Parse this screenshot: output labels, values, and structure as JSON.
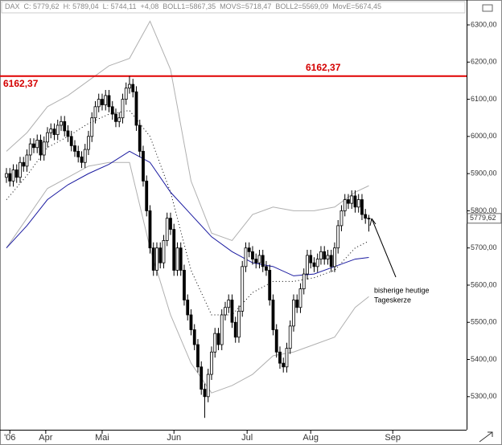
{
  "chart_data": {
    "type": "candlestick",
    "header": [
      "DAX",
      "C: 5779,62",
      "H: 5789,04",
      "L: 5744,11",
      "+4,08",
      "BOLL1=5867,35",
      "MOVS=5718,47",
      "BOLL2=5569,09",
      "MovE=5674,45"
    ],
    "ylim": [
      5211,
      6367
    ],
    "yticks": [
      {
        "value": 5300,
        "label": "5300,00"
      },
      {
        "value": 5400,
        "label": "5400,00"
      },
      {
        "value": 5500,
        "label": "5500,00"
      },
      {
        "value": 5600,
        "label": "5600,00"
      },
      {
        "value": 5700,
        "label": "5700,00"
      },
      {
        "value": 5800,
        "label": "5800,00"
      },
      {
        "value": 5900,
        "label": "5900,00"
      },
      {
        "value": 6000,
        "label": "6000,00"
      },
      {
        "value": 6100,
        "label": "6100,00"
      },
      {
        "value": 6200,
        "label": "6200,00"
      },
      {
        "value": 6300,
        "label": "6300,00"
      }
    ],
    "xlim": [
      -1.88,
      134.6
    ],
    "xticks": [
      {
        "value": 1,
        "label": "'06"
      },
      {
        "value": 11.5,
        "label": "Apr"
      },
      {
        "value": 28,
        "label": "Mai"
      },
      {
        "value": 49,
        "label": "Jun"
      },
      {
        "value": 70.4,
        "label": "Jul"
      },
      {
        "value": 89,
        "label": "Aug"
      },
      {
        "value": 113,
        "label": "Sep"
      }
    ],
    "up_color": "#ffffff",
    "down_color": "#000000",
    "open": [
      5890,
      5900,
      5880,
      5910,
      5890,
      5930,
      5920,
      5950,
      5980,
      5970,
      5990,
      5950,
      5985,
      6010,
      6020,
      6005,
      6030,
      6040,
      6015,
      6000,
      5975,
      5960,
      5945,
      5930,
      5965,
      6000,
      6050,
      6080,
      6100,
      6085,
      6110,
      6080,
      6060,
      6040,
      6050,
      6100,
      6130,
      6140,
      6120,
      6030,
      5960,
      5880,
      5800,
      5700,
      5640,
      5700,
      5660,
      5720,
      5780,
      5750,
      5640,
      5700,
      5640,
      5560,
      5520,
      5480,
      5440,
      5380,
      5320,
      5300,
      5360,
      5420,
      5470,
      5440,
      5520,
      5540,
      5560,
      5500,
      5460,
      5530,
      5650,
      5700,
      5690,
      5670,
      5660,
      5680,
      5650,
      5640,
      5560,
      5480,
      5420,
      5390,
      5380,
      5430,
      5490,
      5560,
      5540,
      5590,
      5630,
      5680,
      5660,
      5650,
      5670,
      5690,
      5670,
      5680,
      5650,
      5700,
      5760,
      5800,
      5830,
      5820,
      5840,
      5810,
      5830,
      5790,
      5780
    ],
    "high": [
      5915,
      5915,
      5925,
      5925,
      5945,
      5945,
      5965,
      5995,
      5995,
      6005,
      6005,
      6000,
      6025,
      6035,
      6035,
      6045,
      6055,
      6055,
      6030,
      6015,
      5990,
      5975,
      5960,
      5980,
      6015,
      6065,
      6095,
      6115,
      6115,
      6125,
      6125,
      6095,
      6075,
      6065,
      6115,
      6145,
      6162.37,
      6155,
      6135,
      6045,
      5975,
      5895,
      5815,
      5715,
      5715,
      5715,
      5735,
      5795,
      5795,
      5765,
      5715,
      5715,
      5655,
      5575,
      5535,
      5495,
      5455,
      5395,
      5335,
      5375,
      5435,
      5485,
      5485,
      5535,
      5555,
      5575,
      5575,
      5515,
      5545,
      5665,
      5715,
      5715,
      5705,
      5685,
      5695,
      5695,
      5665,
      5655,
      5575,
      5495,
      5435,
      5405,
      5445,
      5505,
      5575,
      5575,
      5605,
      5645,
      5695,
      5695,
      5675,
      5685,
      5705,
      5705,
      5695,
      5695,
      5715,
      5775,
      5815,
      5845,
      5845,
      5855,
      5855,
      5845,
      5845,
      5805,
      5789.04
    ],
    "low": [
      5875,
      5865,
      5865,
      5875,
      5875,
      5905,
      5905,
      5935,
      5955,
      5955,
      5935,
      5935,
      5970,
      5995,
      5990,
      5990,
      6015,
      6000,
      5985,
      5960,
      5945,
      5930,
      5915,
      5915,
      5950,
      5985,
      6035,
      6065,
      6070,
      6070,
      6065,
      6045,
      6025,
      6025,
      6035,
      6085,
      6115,
      6105,
      6015,
      5945,
      5865,
      5785,
      5685,
      5625,
      5625,
      5645,
      5645,
      5705,
      5735,
      5625,
      5625,
      5625,
      5545,
      5505,
      5465,
      5425,
      5365,
      5305,
      5243,
      5285,
      5345,
      5405,
      5425,
      5425,
      5505,
      5525,
      5485,
      5445,
      5445,
      5515,
      5635,
      5675,
      5655,
      5645,
      5645,
      5635,
      5625,
      5545,
      5465,
      5405,
      5375,
      5365,
      5365,
      5415,
      5475,
      5525,
      5525,
      5575,
      5615,
      5645,
      5635,
      5635,
      5655,
      5655,
      5655,
      5635,
      5635,
      5685,
      5745,
      5785,
      5805,
      5805,
      5795,
      5795,
      5775,
      5765,
      5744.11
    ],
    "close": [
      5900,
      5880,
      5910,
      5890,
      5930,
      5920,
      5950,
      5980,
      5970,
      5990,
      5950,
      5985,
      6010,
      6020,
      6005,
      6030,
      6040,
      6015,
      6000,
      5975,
      5960,
      5945,
      5930,
      5965,
      6000,
      6050,
      6080,
      6100,
      6085,
      6110,
      6080,
      6060,
      6040,
      6050,
      6100,
      6130,
      6140,
      6120,
      6030,
      5960,
      5880,
      5800,
      5700,
      5640,
      5700,
      5660,
      5720,
      5780,
      5750,
      5640,
      5700,
      5640,
      5560,
      5520,
      5480,
      5440,
      5380,
      5320,
      5300,
      5360,
      5420,
      5470,
      5440,
      5520,
      5540,
      5560,
      5500,
      5460,
      5530,
      5650,
      5700,
      5690,
      5670,
      5660,
      5680,
      5650,
      5640,
      5560,
      5480,
      5420,
      5390,
      5380,
      5430,
      5490,
      5560,
      5540,
      5590,
      5630,
      5680,
      5660,
      5650,
      5670,
      5690,
      5670,
      5680,
      5650,
      5700,
      5760,
      5800,
      5830,
      5820,
      5840,
      5810,
      5830,
      5790,
      5780,
      5779.62
    ],
    "last_label": "5779,62",
    "indicator_x": [
      0,
      6,
      12,
      18,
      24,
      30,
      36,
      42,
      48,
      54,
      60,
      66,
      72,
      78,
      84,
      90,
      96,
      102,
      106
    ],
    "series": [
      {
        "color": "#b0b0b0",
        "style": "solid",
        "values": [
          5960,
          6010,
          6080,
          6110,
          6150,
          6190,
          6210,
          6310,
          6180,
          5880,
          5740,
          5720,
          5790,
          5810,
          5800,
          5800,
          5810,
          5850,
          5867.35
        ]
      },
      {
        "color": "#000000",
        "style": "dotted",
        "values": [
          5830,
          5895,
          5970,
          6000,
          6035,
          6060,
          6070,
          6000,
          5850,
          5640,
          5520,
          5520,
          5580,
          5610,
          5610,
          5620,
          5640,
          5700,
          5718.47
        ]
      },
      {
        "color": "#b0b0b0",
        "style": "solid",
        "values": [
          5700,
          5780,
          5860,
          5890,
          5920,
          5930,
          5930,
          5700,
          5520,
          5390,
          5310,
          5330,
          5360,
          5410,
          5420,
          5440,
          5460,
          5540,
          5569.09
        ]
      },
      {
        "color": "#1a1aa0",
        "style": "solid",
        "values": [
          5700,
          5760,
          5830,
          5870,
          5900,
          5925,
          5960,
          5930,
          5850,
          5790,
          5730,
          5690,
          5660,
          5650,
          5625,
          5630,
          5650,
          5670,
          5674.45
        ]
      }
    ],
    "hline": {
      "value": 6162.37,
      "label": "6162,37",
      "color": "#e00000"
    },
    "annotation": [
      "bisherige heutige",
      "Tageskerze"
    ]
  }
}
